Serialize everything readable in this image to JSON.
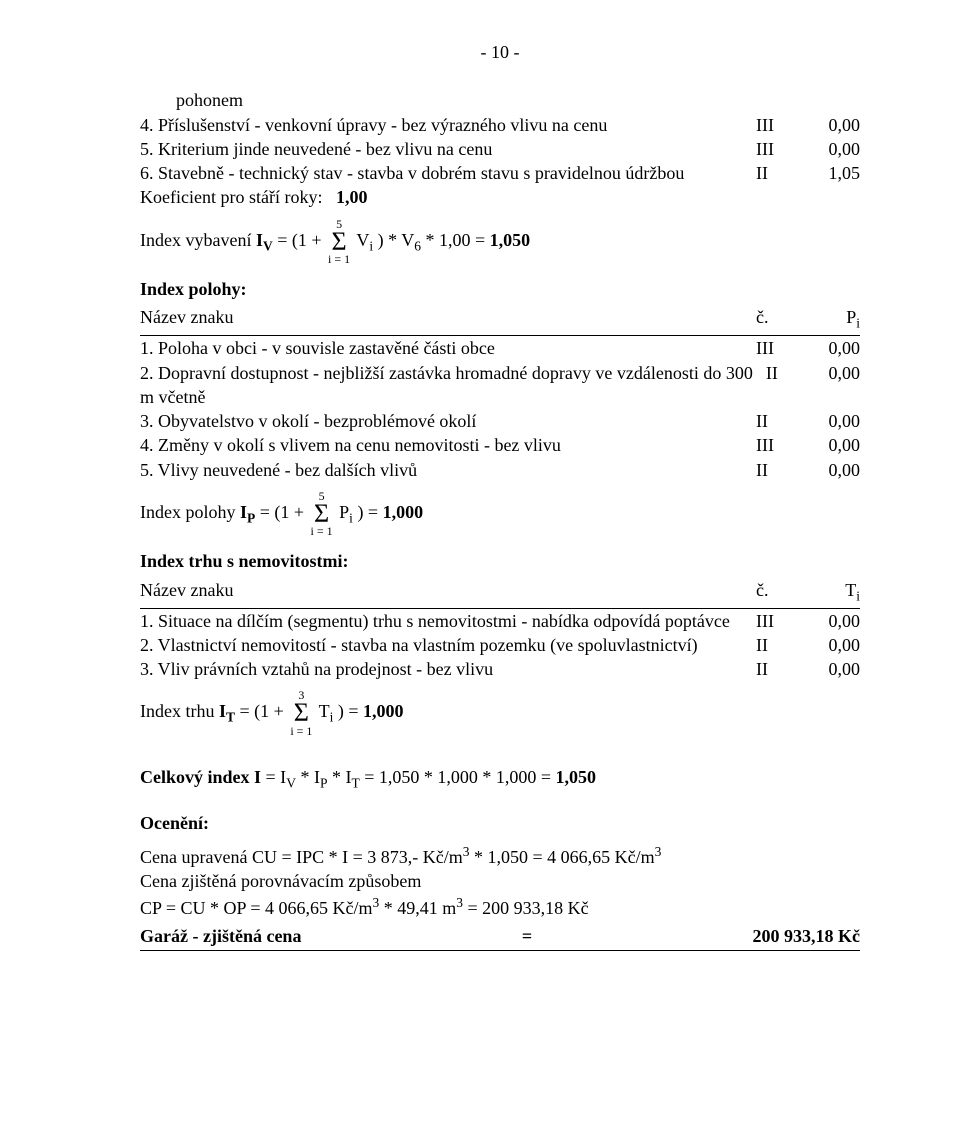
{
  "page_number": "- 10 -",
  "top": {
    "pohonem": "pohonem",
    "row4": {
      "text": "4. Příslušenství - venkovní úpravy - bez výrazného vlivu na cenu",
      "c": "III",
      "v": "0,00"
    },
    "row5": {
      "text": "5. Kriterium jinde neuvedené - bez vlivu na cenu",
      "c": "III",
      "v": "0,00"
    },
    "row6": {
      "text": "6. Stavebně - technický stav - stavba v dobrém stavu s pravidelnou údržbou",
      "c": "II",
      "v": "1,05"
    },
    "koef_label": "Koeficient pro stáří roky:",
    "koef_val": "1,00",
    "iv_pre": "Index vybavení ",
    "iv_sym": "I",
    "iv_sub": "V",
    "iv_mid": " = (1 + ",
    "iv_sum_top": "5",
    "iv_sum_bot": "i = 1",
    "iv_after_sum": " V",
    "iv_after_sub": "i",
    "iv_tail": " ) * V",
    "iv_tail_sub": "6",
    "iv_tail2": "  * 1,00 = ",
    "iv_result": "1,050"
  },
  "poloha": {
    "heading": "Index polohy:",
    "head_lhs": "Název znaku",
    "head_c1": "č.",
    "head_c2_pre": "P",
    "head_c2_sub": "i",
    "rows": [
      {
        "text": "1. Poloha v obci - v souvisle zastavěné části obce",
        "c": "III",
        "v": "0,00"
      },
      {
        "text": "2. Dopravní dostupnost - nejbližší zastávka hromadné dopravy ve vzdálenosti do 300 m včetně",
        "c": "II",
        "v": "0,00"
      },
      {
        "text": "3. Obyvatelstvo v okolí - bezproblémové okolí",
        "c": "II",
        "v": "0,00"
      },
      {
        "text": "4. Změny v okolí s vlivem na cenu nemovitosti - bez vlivu",
        "c": "III",
        "v": "0,00"
      },
      {
        "text": "5. Vlivy neuvedené - bez dalších vlivů",
        "c": "II",
        "v": "0,00"
      }
    ],
    "ip_pre": "Index polohy ",
    "ip_sym": "I",
    "ip_sub": "P",
    "ip_mid": " = (1 + ",
    "ip_sum_top": "5",
    "ip_sum_bot": "i = 1",
    "ip_after": " P",
    "ip_after_sub": "i",
    "ip_tail": " ) = ",
    "ip_result": "1,000"
  },
  "trh": {
    "heading": "Index trhu s nemovitostmi:",
    "head_lhs": "Název znaku",
    "head_c1": "č.",
    "head_c2_pre": "T",
    "head_c2_sub": "i",
    "rows": [
      {
        "text": "1. Situace na dílčím (segmentu) trhu s nemovitostmi - nabídka odpovídá poptávce",
        "c": "III",
        "v": "0,00"
      },
      {
        "text": "2. Vlastnictví nemovitostí - stavba na vlastním pozemku (ve spoluvlastnictví)",
        "c": "II",
        "v": "0,00"
      },
      {
        "text": "3. Vliv právních vztahů na prodejnost - bez vlivu",
        "c": "II",
        "v": "0,00"
      }
    ],
    "it_pre": "Index trhu ",
    "it_sym": "I",
    "it_sub": "T",
    "it_mid": " = (1 + ",
    "it_sum_top": "3",
    "it_sum_bot": "i = 1",
    "it_after": " T",
    "it_after_sub": "i",
    "it_tail": " ) = ",
    "it_result": "1,000"
  },
  "celkovy": {
    "label_pre": "Celkový index I",
    "expr": " = I",
    "sub_v": "V",
    "mid1": " * I",
    "sub_p": "P",
    "mid2": " * I",
    "sub_t": "T",
    "mid3": " = 1,050 * 1,000 * 1,000 = ",
    "result": "1,050"
  },
  "oceneni": {
    "heading": "Ocenění:",
    "line1a": "Cena upravená CU = IPC * I = 3 873,- Kč/m",
    "line1sup": "3",
    "line1b": " * 1,050  = 4 066,65 Kč/m",
    "line1sup2": "3",
    "line2": "Cena zjištěná porovnávacím způsobem",
    "line3a": "CP = CU * OP = 4 066,65 Kč/m",
    "line3sup": "3",
    "line3b": " * 49,41 m",
    "line3sup2": "3",
    "line3c": " = 200 933,18 Kč",
    "final_lhs": "Garáž - zjištěná cena",
    "final_eq": "=",
    "final_val": "200 933,18 Kč"
  }
}
